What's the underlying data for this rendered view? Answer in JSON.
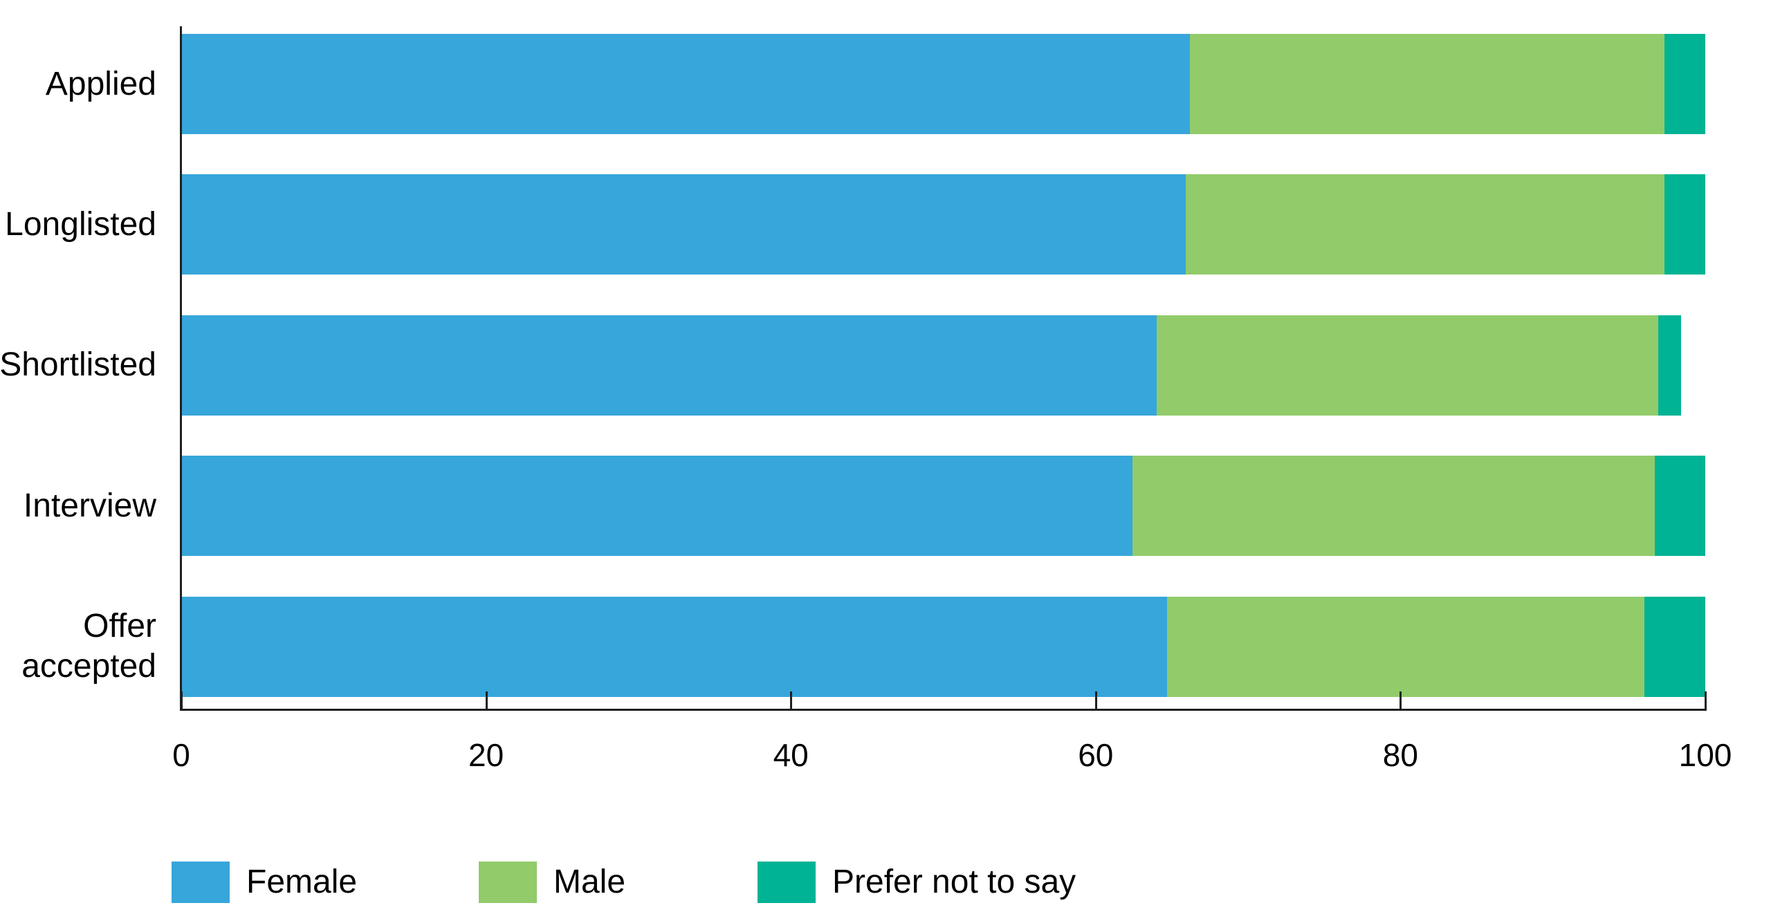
{
  "chart_data": {
    "type": "bar",
    "orientation": "horizontal",
    "stacked": true,
    "title": "",
    "xlabel": "",
    "ylabel": "",
    "categories": [
      "Applied",
      "Longlisted",
      "Shortlisted",
      "Interview",
      "Offer accepted"
    ],
    "series": [
      {
        "name": "Female",
        "color": "#37A6DB",
        "values": [
          66.2,
          65.9,
          64.0,
          62.4,
          64.7
        ]
      },
      {
        "name": "Male",
        "color": "#91CB6A",
        "values": [
          31.1,
          31.4,
          32.9,
          34.3,
          31.3
        ]
      },
      {
        "name": "Prefer not to say",
        "color": "#00B394",
        "values": [
          2.7,
          2.7,
          1.5,
          3.3,
          4.0
        ]
      }
    ],
    "xlim": [
      0,
      100
    ],
    "xticks": [
      "0",
      "20",
      "40",
      "60",
      "80",
      "100"
    ],
    "grid": false,
    "legend_position": "bottom",
    "axis_color": "#1f1f1f",
    "text_color": "#000000",
    "background_color": "#ffffff"
  },
  "legend": {
    "items": [
      {
        "label": "Female",
        "color": "#37A6DB"
      },
      {
        "label": "Male",
        "color": "#91CB6A"
      },
      {
        "label": "Prefer not to say",
        "color": "#00B394"
      }
    ]
  }
}
